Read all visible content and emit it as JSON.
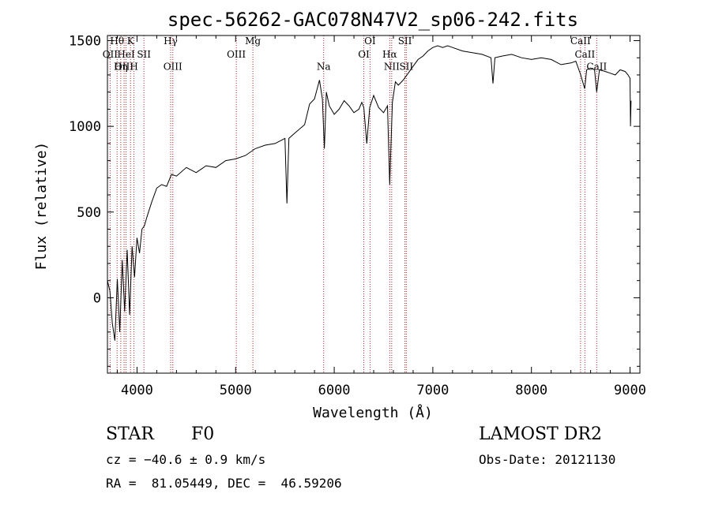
{
  "chart_data": {
    "type": "line",
    "title": "spec-56262-GAC078N47V2_sp06-242.fits",
    "xlabel": "Wavelength (Å)",
    "ylabel": "Flux (relative)",
    "xlim": [
      3700,
      9100
    ],
    "ylim": [
      -440,
      1530
    ],
    "xticks": [
      4000,
      5000,
      6000,
      7000,
      8000,
      9000
    ],
    "yticks": [
      0,
      500,
      1000,
      1500
    ],
    "grid": false,
    "series": [
      {
        "x": [
          3700,
          3725,
          3750,
          3775,
          3800,
          3825,
          3850,
          3875,
          3900,
          3925,
          3950,
          3975,
          4000,
          4025,
          4050,
          4075,
          4100,
          4150,
          4200,
          4250,
          4300,
          4350,
          4400,
          4500,
          4600,
          4700,
          4800,
          4900,
          5000,
          5100,
          5200,
          5300,
          5400,
          5500,
          5520,
          5540,
          5600,
          5700,
          5750,
          5800,
          5850,
          5880,
          5900,
          5920,
          5950,
          6000,
          6050,
          6100,
          6150,
          6200,
          6250,
          6280,
          6300,
          6330,
          6360,
          6400,
          6450,
          6500,
          6540,
          6563,
          6590,
          6620,
          6650,
          6700,
          6750,
          6800,
          6850,
          6900,
          6950,
          7000,
          7050,
          7100,
          7150,
          7200,
          7300,
          7400,
          7500,
          7590,
          7610,
          7630,
          7700,
          7800,
          7900,
          8000,
          8100,
          8200,
          8300,
          8400,
          8450,
          8500,
          8540,
          8560,
          8600,
          8640,
          8662,
          8690,
          8750,
          8800,
          8850,
          8900,
          8950,
          8980,
          9000,
          9005,
          9010
        ],
        "y": [
          100,
          40,
          -150,
          -250,
          110,
          -200,
          220,
          -80,
          280,
          -100,
          300,
          120,
          350,
          260,
          400,
          420,
          470,
          560,
          640,
          660,
          650,
          720,
          710,
          760,
          730,
          770,
          760,
          800,
          810,
          830,
          870,
          890,
          900,
          930,
          550,
          930,
          960,
          1010,
          1130,
          1160,
          1270,
          1160,
          870,
          1200,
          1120,
          1070,
          1100,
          1150,
          1120,
          1080,
          1100,
          1140,
          1110,
          900,
          1110,
          1180,
          1110,
          1080,
          1120,
          660,
          1140,
          1260,
          1240,
          1270,
          1310,
          1350,
          1390,
          1410,
          1440,
          1460,
          1470,
          1460,
          1470,
          1460,
          1440,
          1430,
          1420,
          1400,
          1250,
          1400,
          1410,
          1420,
          1400,
          1390,
          1400,
          1390,
          1360,
          1370,
          1380,
          1300,
          1220,
          1330,
          1340,
          1330,
          1200,
          1330,
          1320,
          1310,
          1300,
          1330,
          1320,
          1300,
          1280,
          1000,
          1150
        ]
      }
    ],
    "lines": [
      {
        "label": "Hθ",
        "x": 3798,
        "label_y": 1480
      },
      {
        "label": "OII",
        "x": 3727,
        "label_y": 1400
      },
      {
        "label": "OIII",
        "x": 3869,
        "label_y": 1330
      },
      {
        "label": "Hη",
        "x": 3835,
        "label_y": 1330
      },
      {
        "label": "HeI",
        "x": 3889,
        "label_y": 1400
      },
      {
        "label": "K",
        "x": 3934,
        "label_y": 1480
      },
      {
        "label": "SII",
        "x": 4070,
        "label_y": 1400
      },
      {
        "label": "H",
        "x": 3969,
        "label_y": 1330
      },
      {
        "label": "Hγ",
        "x": 4341,
        "label_y": 1480
      },
      {
        "label": "OIII",
        "x": 4363,
        "label_y": 1330
      },
      {
        "label": "OIII",
        "x": 5007,
        "label_y": 1400
      },
      {
        "label": "Mg",
        "x": 5175,
        "label_y": 1480
      },
      {
        "label": "Na",
        "x": 5893,
        "label_y": 1330
      },
      {
        "label": "OI",
        "x": 6300,
        "label_y": 1400
      },
      {
        "label": "OI",
        "x": 6363,
        "label_y": 1480
      },
      {
        "label": "Hα",
        "x": 6563,
        "label_y": 1400
      },
      {
        "label": "NII",
        "x": 6583,
        "label_y": 1330
      },
      {
        "label": "SII",
        "x": 6717,
        "label_y": 1480
      },
      {
        "label": "SII",
        "x": 6731,
        "label_y": 1330
      },
      {
        "label": "CaII",
        "x": 8498,
        "label_y": 1480
      },
      {
        "label": "CaII",
        "x": 8542,
        "label_y": 1400
      },
      {
        "label": "CaII",
        "x": 8662,
        "label_y": 1330
      }
    ],
    "colors": {
      "line_marker": "#b22222",
      "spectrum": "#000000"
    }
  },
  "info": {
    "class": "STAR",
    "subclass": "F0",
    "survey": "LAMOST DR2",
    "cz": "cz = −40.6 ± 0.9 km/s",
    "obs_date": "Obs-Date: 20121130",
    "coords": "RA =  81.05449, DEC =  46.59206"
  }
}
